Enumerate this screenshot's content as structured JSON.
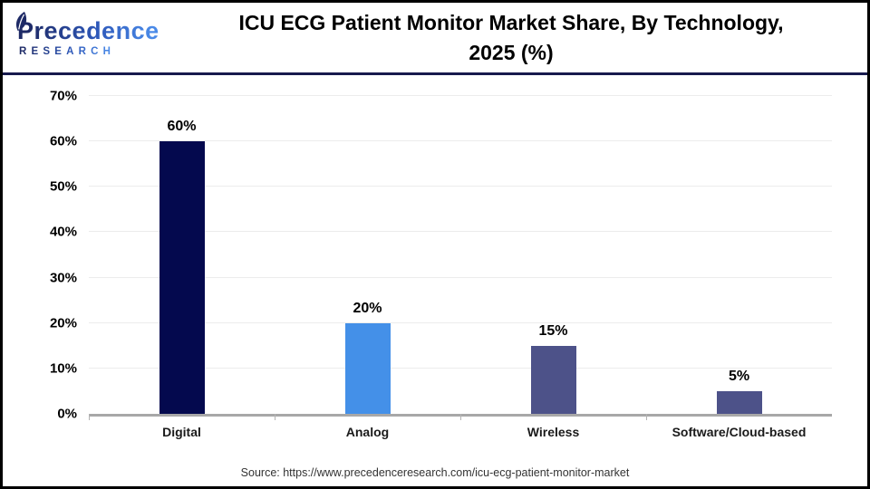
{
  "header": {
    "logo": {
      "brand": "Precedence",
      "subtext": "RESEARCH"
    },
    "title_line1": "ICU ECG Patient Monitor Market Share, By Technology,",
    "title_line2": "2025 (%)"
  },
  "footer": {
    "source": "Source: https://www.precedenceresearch.com/icu-ecg-patient-monitor-market"
  },
  "chart_data": {
    "type": "bar",
    "title": "ICU ECG Patient Monitor Market Share, By Technology, 2025 (%)",
    "categories": [
      "Digital",
      "Analog",
      "Wireless",
      "Software/Cloud-based"
    ],
    "values": [
      60,
      20,
      15,
      5
    ],
    "value_labels": [
      "60%",
      "20%",
      "15%",
      "5%"
    ],
    "bar_colors": [
      "#04094e",
      "#4490e8",
      "#4d5289",
      "#4d5289"
    ],
    "xlabel": "",
    "ylabel": "",
    "ylim": [
      0,
      70
    ],
    "yticks": [
      "0%",
      "10%",
      "20%",
      "30%",
      "40%",
      "50%",
      "60%",
      "70%"
    ],
    "grid": true,
    "legend": false,
    "gridline_color": "#ececec",
    "axis_color": "#a8a8a8"
  }
}
